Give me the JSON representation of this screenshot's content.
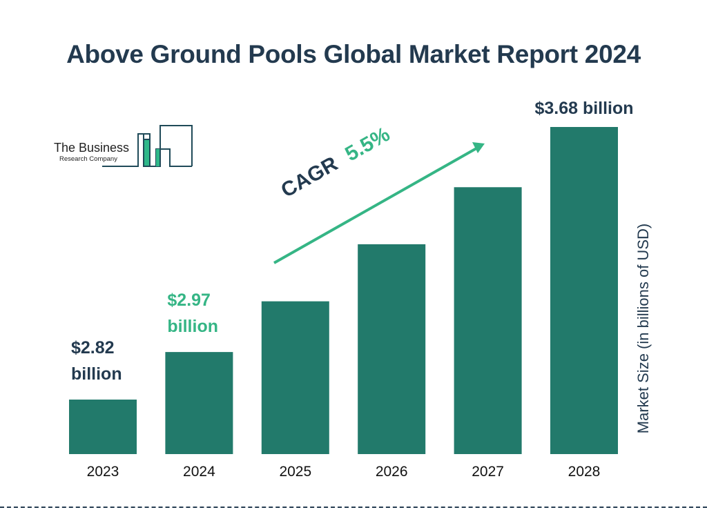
{
  "title": "Above Ground Pools Global Market Report 2024",
  "logo": {
    "line1": "The Business",
    "line2": "Research Company"
  },
  "cagr": {
    "label": "CAGR",
    "value": "5.5%"
  },
  "colors": {
    "bar": "#227a6b",
    "accent": "#35b585",
    "text": "#233a4f"
  },
  "chart_data": {
    "type": "bar",
    "title": "Above Ground Pools Global Market Report 2024",
    "categories": [
      "2023",
      "2024",
      "2025",
      "2026",
      "2027",
      "2028"
    ],
    "values": [
      2.82,
      2.97,
      3.13,
      3.31,
      3.49,
      3.68
    ],
    "ylabel": "Market Size (in billions of USD)",
    "xlabel": "",
    "data_labels": [
      {
        "category": "2023",
        "text": "$2.82 billion"
      },
      {
        "category": "2024",
        "text": "$2.97 billion"
      },
      {
        "category": "2028",
        "text": "$3.68 billion"
      }
    ],
    "grid": false,
    "legend": "none"
  }
}
